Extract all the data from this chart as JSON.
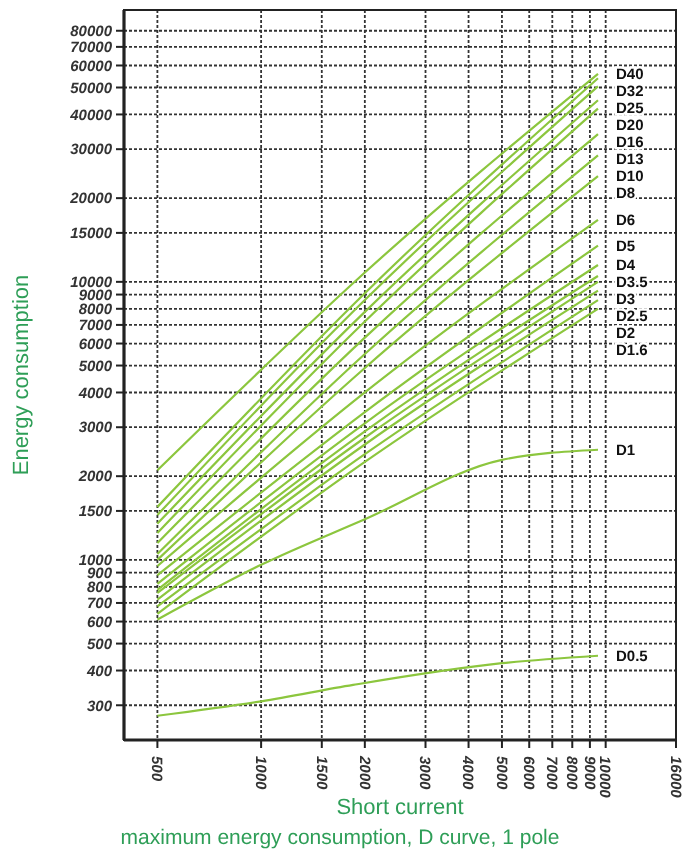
{
  "chart_data": {
    "type": "line",
    "xlabel": "Short current",
    "ylabel": "Energy consumption",
    "annotations": [
      "maximum energy consumption, D curve, 1 pole"
    ],
    "log": "xy",
    "grid": true,
    "marker": "none",
    "line_style": "solid",
    "xlim": [
      400,
      16000
    ],
    "xticks": [
      500,
      1000,
      1500,
      2000,
      3000,
      4000,
      5000,
      6000,
      7000,
      8000,
      9000,
      10000,
      16000
    ],
    "ylim": [
      225,
      95000
    ],
    "yticks": [
      300,
      400,
      500,
      600,
      700,
      800,
      900,
      1000,
      1500,
      2000,
      3000,
      4000,
      5000,
      6000,
      7000,
      8000,
      9000,
      10000,
      15000,
      20000,
      30000,
      40000,
      50000,
      60000,
      70000,
      80000
    ],
    "series": [
      {
        "name": "D40",
        "color": "#8cc63e",
        "x": [
          500,
          2000,
          9500
        ],
        "values": [
          2100,
          10800,
          56000
        ]
      },
      {
        "name": "D32",
        "color": "#8cc63e",
        "x": [
          500,
          2000,
          9500
        ],
        "values": [
          1550,
          9100,
          54000
        ]
      },
      {
        "name": "D25",
        "color": "#8cc63e",
        "x": [
          500,
          2000,
          9500
        ],
        "values": [
          1450,
          8600,
          50500
        ]
      },
      {
        "name": "D20",
        "color": "#8cc63e",
        "x": [
          500,
          2000,
          9500
        ],
        "values": [
          1350,
          7800,
          45000
        ]
      },
      {
        "name": "D16",
        "color": "#8cc63e",
        "x": [
          500,
          2000,
          9500
        ],
        "values": [
          1250,
          7200,
          42000
        ]
      },
      {
        "name": "D13",
        "color": "#8cc63e",
        "x": [
          500,
          2000,
          9500
        ],
        "values": [
          1150,
          6300,
          34000
        ]
      },
      {
        "name": "D10",
        "color": "#8cc63e",
        "x": [
          500,
          2000,
          9500
        ],
        "values": [
          1050,
          5500,
          28500
        ]
      },
      {
        "name": "D8",
        "color": "#8cc63e",
        "x": [
          500,
          2000,
          9500
        ],
        "values": [
          1000,
          4900,
          24000
        ]
      },
      {
        "name": "D6",
        "color": "#8cc63e",
        "x": [
          500,
          2000,
          9500
        ],
        "values": [
          950,
          4000,
          16700
        ]
      },
      {
        "name": "D5",
        "color": "#8cc63e",
        "x": [
          500,
          2000,
          9500
        ],
        "values": [
          880,
          3400,
          13500
        ]
      },
      {
        "name": "D4",
        "color": "#8cc63e",
        "x": [
          500,
          2000,
          9500
        ],
        "values": [
          820,
          3100,
          11500
        ]
      },
      {
        "name": "D3.5",
        "color": "#8cc63e",
        "x": [
          500,
          2000,
          9500
        ],
        "values": [
          780,
          2900,
          10500
        ]
      },
      {
        "name": "D3",
        "color": "#8cc63e",
        "x": [
          500,
          2000,
          9500
        ],
        "values": [
          760,
          2750,
          10000
        ]
      },
      {
        "name": "D2.5",
        "color": "#8cc63e",
        "x": [
          500,
          2000,
          9500
        ],
        "values": [
          720,
          2600,
          9300
        ]
      },
      {
        "name": "D2",
        "color": "#8cc63e",
        "x": [
          500,
          2000,
          9500
        ],
        "values": [
          680,
          2400,
          8600
        ]
      },
      {
        "name": "D1.6",
        "color": "#8cc63e",
        "x": [
          500,
          2000,
          9500
        ],
        "values": [
          640,
          2250,
          8000
        ]
      },
      {
        "name": "D1",
        "color": "#8cc63e",
        "x": [
          500,
          1000,
          2000,
          5000,
          9500
        ],
        "values": [
          610,
          960,
          1400,
          2290,
          2490
        ]
      },
      {
        "name": "D0.5",
        "color": "#8cc63e",
        "x": [
          500,
          1000,
          1850,
          5000,
          9500
        ],
        "values": [
          275,
          310,
          355,
          425,
          452
        ]
      }
    ]
  }
}
